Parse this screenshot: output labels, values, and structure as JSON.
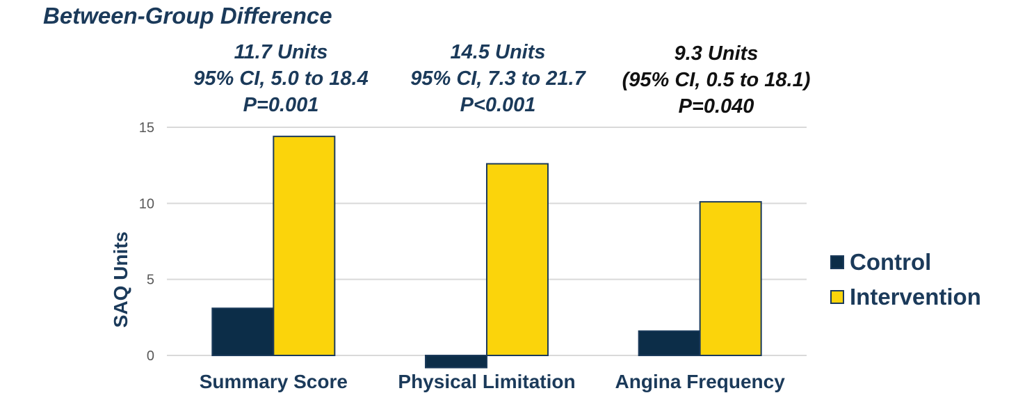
{
  "chart_data": {
    "type": "bar",
    "title": "Between-Group Difference",
    "ylabel": "SAQ Units",
    "xlabel": "",
    "categories": [
      "Summary Score",
      "Physical Limitation",
      "Angina Frequency"
    ],
    "series": [
      {
        "name": "Control",
        "values": [
          3.1,
          -0.8,
          1.6
        ],
        "color": "#0c2d48"
      },
      {
        "name": "Intervention",
        "values": [
          14.4,
          12.6,
          10.1
        ],
        "color": "#fbd40b"
      }
    ],
    "ylim": [
      -1,
      15
    ],
    "yticks": [
      "0",
      "5",
      "10",
      "15"
    ],
    "grid": true,
    "legend_position": "right",
    "annotations": [
      {
        "line1": "11.7 Units",
        "line2": "95% CI, 5.0 to 18.4",
        "line3": "P=0.001"
      },
      {
        "line1": "14.5 Units",
        "line2": "95% CI, 7.3 to 21.7",
        "line3": "P<0.001"
      },
      {
        "line1": "9.3 Units",
        "line2": "(95% CI, 0.5 to 18.1)",
        "line3": "P=0.040"
      }
    ],
    "colors": {
      "text": "#1b3a5a",
      "grid": "#d9d9d9",
      "bar_outline": "#1b3a5a"
    }
  }
}
